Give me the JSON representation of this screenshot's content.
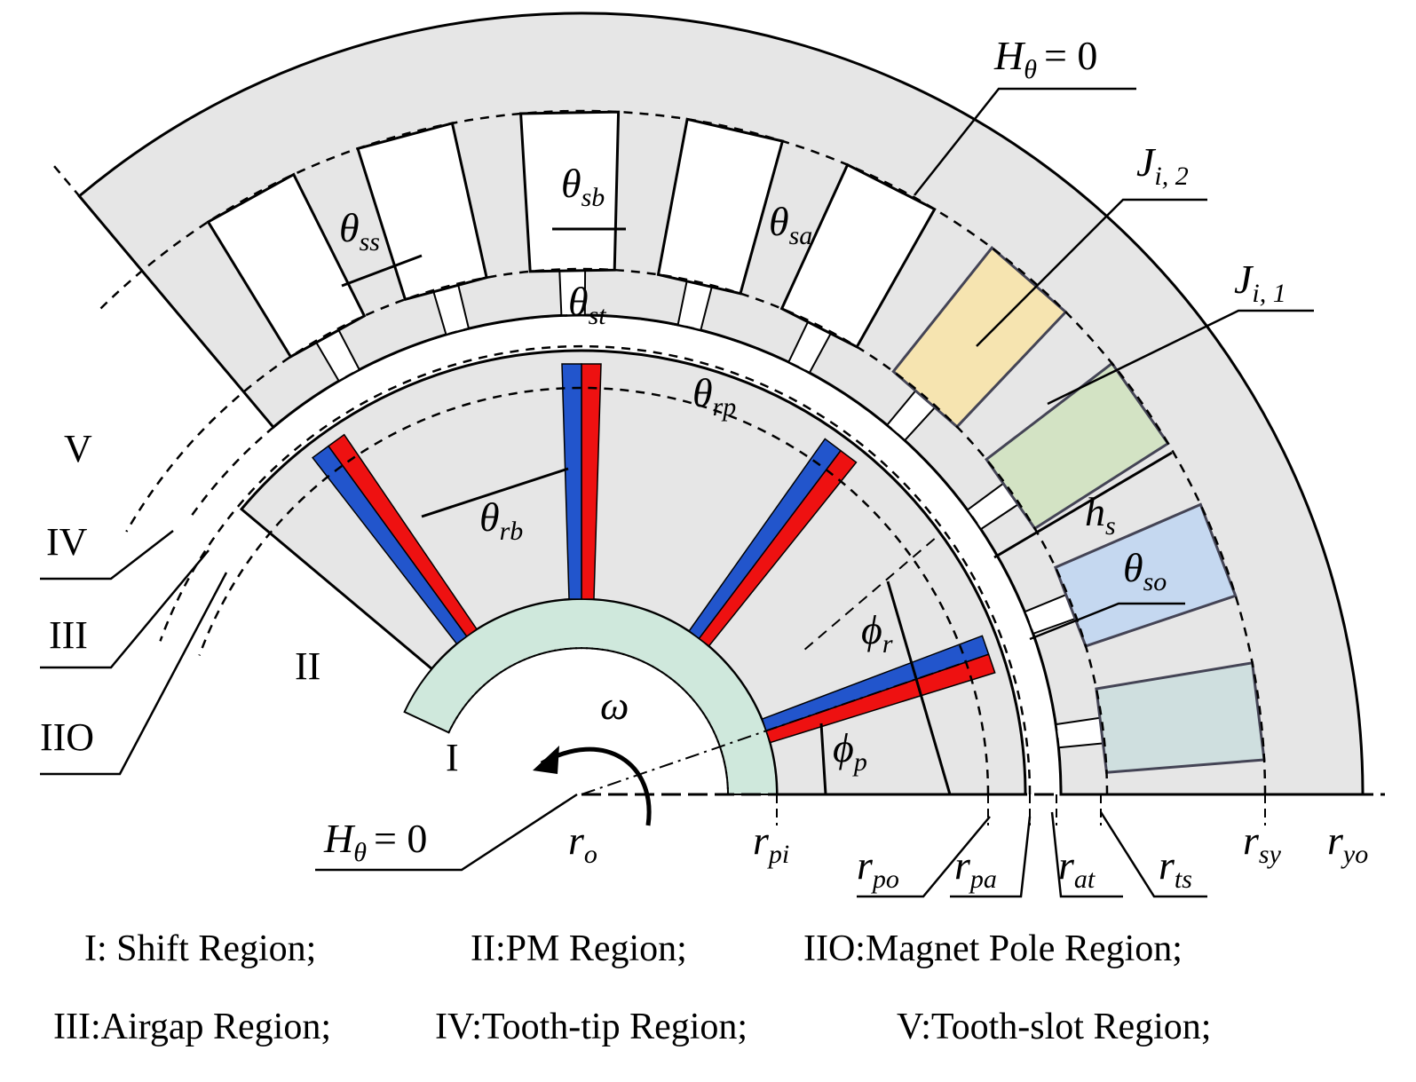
{
  "annotations": {
    "h_top": {
      "symbol": "H",
      "sub": "θ",
      "rest": "= 0"
    },
    "h_bottom": {
      "symbol": "H",
      "sub": "θ",
      "rest": "= 0"
    },
    "j_i2": {
      "symbol": "J",
      "sub": "i, 2"
    },
    "j_i1": {
      "symbol": "J",
      "sub": "i, 1"
    },
    "theta_ss": {
      "symbol": "θ",
      "sub": "ss"
    },
    "theta_sb": {
      "symbol": "θ",
      "sub": "sb"
    },
    "theta_sa": {
      "symbol": "θ",
      "sub": "sa"
    },
    "theta_st": {
      "symbol": "θ",
      "sub": "st"
    },
    "theta_rp": {
      "symbol": "θ",
      "sub": "rp"
    },
    "theta_rb": {
      "symbol": "θ",
      "sub": "rb"
    },
    "h_s": {
      "symbol": "h",
      "sub": "s"
    },
    "theta_so": {
      "symbol": "θ",
      "sub": "so"
    },
    "phi_r": {
      "symbol": "ϕ",
      "sub": "r"
    },
    "phi_p": {
      "symbol": "ϕ",
      "sub": "p"
    },
    "omega": {
      "symbol": "ω"
    }
  },
  "radii": {
    "r_o": {
      "symbol": "r",
      "sub": "o"
    },
    "r_pi": {
      "symbol": "r",
      "sub": "pi"
    },
    "r_po": {
      "symbol": "r",
      "sub": "po"
    },
    "r_pa": {
      "symbol": "r",
      "sub": "pa"
    },
    "r_at": {
      "symbol": "r",
      "sub": "at"
    },
    "r_ts": {
      "symbol": "r",
      "sub": "ts"
    },
    "r_sy": {
      "symbol": "r",
      "sub": "sy"
    },
    "r_yo": {
      "symbol": "r",
      "sub": "yo"
    }
  },
  "regions": [
    "V",
    "IV",
    "III",
    "IIO",
    "II",
    "I"
  ],
  "legend": [
    "I: Shift Region;",
    "II:PM Region;",
    "IIO:Magnet Pole Region;",
    "III:Airgap Region;",
    "IV:Tooth-tip Region;",
    "V:Tooth-slot Region;"
  ]
}
